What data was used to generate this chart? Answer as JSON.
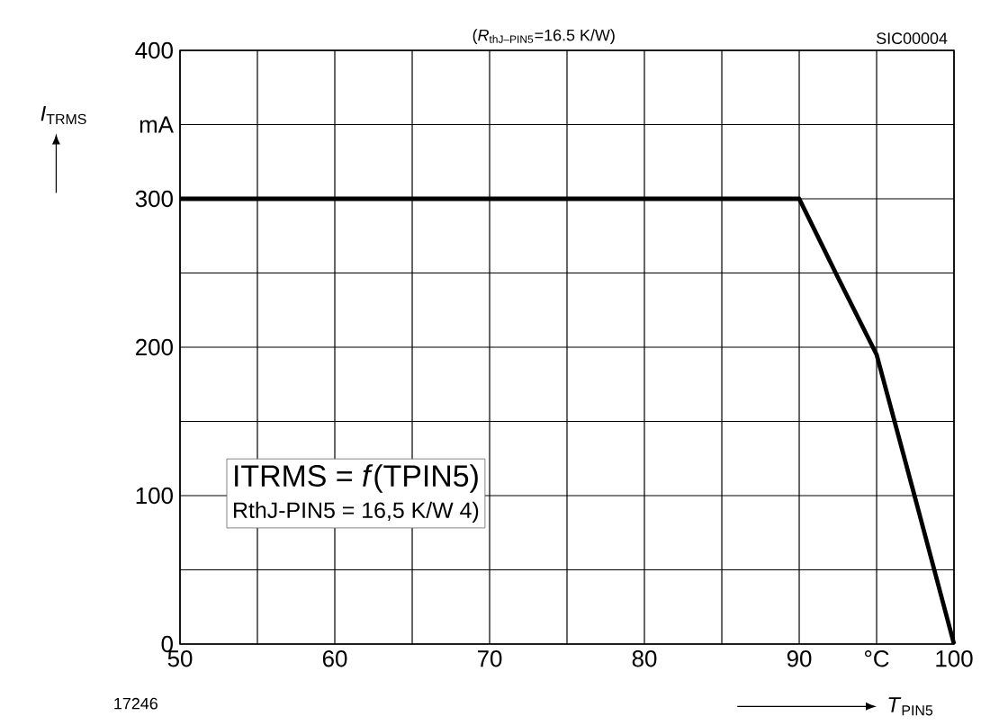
{
  "chart_data": {
    "type": "line",
    "x": [
      50,
      90,
      92.5,
      95,
      97.5,
      100
    ],
    "series": [
      {
        "color": "#000000",
        "values": [
          300,
          300,
          247,
          195,
          98,
          0
        ]
      }
    ],
    "xlim": [
      50,
      100
    ],
    "ylim": [
      0,
      400
    ],
    "xticks": [
      50,
      {
        "value": 55,
        "label": null
      },
      60,
      {
        "value": 65,
        "label": null
      },
      70,
      {
        "value": 75,
        "label": null
      },
      80,
      {
        "value": 85,
        "label": null
      },
      90,
      {
        "value": 95,
        "label": "°C"
      },
      100
    ],
    "yticks": [
      0,
      {
        "value": 50,
        "label": null
      },
      100,
      {
        "value": 150,
        "label": null
      },
      200,
      {
        "value": 250,
        "label": null
      },
      300,
      {
        "value": 350,
        "label": "mA"
      },
      400
    ],
    "xlabel": "*T*$_{PIN5}$",
    "ylabel": "*I*$_{TRMS}$",
    "grid": true,
    "marker": "none",
    "line_style": "solid",
    "annotations": [
      "(*R*$_{thJ–PIN5}$=16.5 K/W)",
      "SIC00004",
      "17246",
      "ITRMS = *f*(TPIN5)",
      "RthJ-PIN5 = 16,5 K/W 4)"
    ]
  }
}
